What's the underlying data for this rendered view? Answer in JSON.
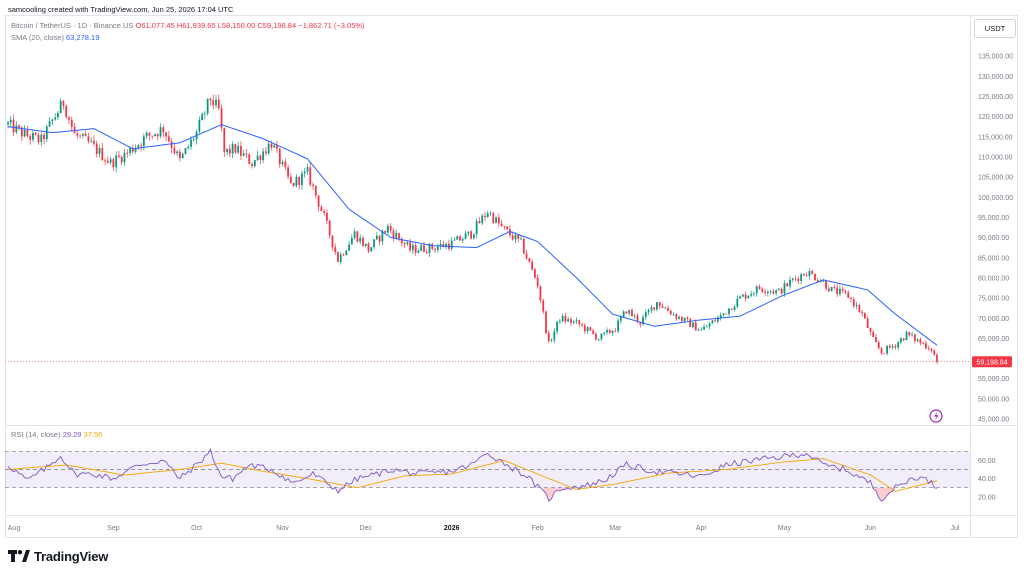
{
  "header": {
    "credit": "samcooling created with TradingView.com, Jun 25, 2026 17:04 UTC",
    "symbol": "Bitcoin / TetherUS · 1D · Binance.US",
    "open": "O61,077.45",
    "high": "H61,939.65",
    "low": "L58,150.00",
    "close": "C59,198.84",
    "change": "−1,862.71 (−3.05%)",
    "sma_label": "SMA (20, close)",
    "sma_value": "63,278.19",
    "currency": "USDT"
  },
  "rsi": {
    "label": "RSI (14, close)",
    "value": "29.29",
    "ma_value": "37.56",
    "ticks": [
      "60.00",
      "40.00",
      "20.00"
    ],
    "upper_band": 70,
    "lower_band": 30
  },
  "brand": {
    "name": "TradingView"
  },
  "colors": {
    "up": "#089981",
    "down": "#f23645",
    "sma": "#2962ff",
    "rsi": "#7e57c2",
    "rsi_ma": "#f7a600"
  },
  "chart_data": {
    "type": "candlestick",
    "x_axis_labels": [
      "Aug",
      "Sep",
      "Oct",
      "Nov",
      "Dec",
      "2026",
      "Feb",
      "Mar",
      "Apr",
      "May",
      "Jun",
      "Jul"
    ],
    "y_axis_labels": [
      "135,000.00",
      "130,000.00",
      "125,000.00",
      "120,000.00",
      "115,000.00",
      "110,000.00",
      "105,000.00",
      "100,000.00",
      "95,000.00",
      "90,000.00",
      "85,000.00",
      "80,000.00",
      "75,000.00",
      "70,000.00",
      "65,000.00",
      "55,000.00",
      "50,000.00",
      "45,000.00"
    ],
    "ylim": [
      44000,
      137000
    ],
    "last_price": 59198.84,
    "last_price_label": "59,198.84",
    "close_path": [
      [
        "2025-07-25",
        118000
      ],
      [
        "2025-07-31",
        115500
      ],
      [
        "2025-08-06",
        114000
      ],
      [
        "2025-08-10",
        119000
      ],
      [
        "2025-08-14",
        123500
      ],
      [
        "2025-08-18",
        115500
      ],
      [
        "2025-08-24",
        113000
      ],
      [
        "2025-08-31",
        108500
      ],
      [
        "2025-09-06",
        111000
      ],
      [
        "2025-09-13",
        115000
      ],
      [
        "2025-09-19",
        117000
      ],
      [
        "2025-09-25",
        109000
      ],
      [
        "2025-10-01",
        116000
      ],
      [
        "2025-10-06",
        124500
      ],
      [
        "2025-10-09",
        121500
      ],
      [
        "2025-10-11",
        111000
      ],
      [
        "2025-10-15",
        112000
      ],
      [
        "2025-10-21",
        108500
      ],
      [
        "2025-10-28",
        113500
      ],
      [
        "2025-11-04",
        103000
      ],
      [
        "2025-11-10",
        106000
      ],
      [
        "2025-11-16",
        95000
      ],
      [
        "2025-11-21",
        84500
      ],
      [
        "2025-11-27",
        91000
      ],
      [
        "2025-12-02",
        87000
      ],
      [
        "2025-12-09",
        92500
      ],
      [
        "2025-12-17",
        87000
      ],
      [
        "2025-12-25",
        87500
      ],
      [
        "2026-01-01",
        88500
      ],
      [
        "2026-01-08",
        91000
      ],
      [
        "2026-01-14",
        96500
      ],
      [
        "2026-01-19",
        92500
      ],
      [
        "2026-01-26",
        88500
      ],
      [
        "2026-02-01",
        78500
      ],
      [
        "2026-02-05",
        63500
      ],
      [
        "2026-02-09",
        70000
      ],
      [
        "2026-02-16",
        68500
      ],
      [
        "2026-02-23",
        65000
      ],
      [
        "2026-03-01",
        67500
      ],
      [
        "2026-03-05",
        72000
      ],
      [
        "2026-03-10",
        69000
      ],
      [
        "2026-03-16",
        74000
      ],
      [
        "2026-03-23",
        70500
      ],
      [
        "2026-04-01",
        67000
      ],
      [
        "2026-04-08",
        70500
      ],
      [
        "2026-04-15",
        75000
      ],
      [
        "2026-04-22",
        77500
      ],
      [
        "2026-04-29",
        76500
      ],
      [
        "2026-05-04",
        79500
      ],
      [
        "2026-05-09",
        81500
      ],
      [
        "2026-05-14",
        79500
      ],
      [
        "2026-05-18",
        77000
      ],
      [
        "2026-05-24",
        75500
      ],
      [
        "2026-05-29",
        71000
      ],
      [
        "2026-06-02",
        64500
      ],
      [
        "2026-06-05",
        61500
      ],
      [
        "2026-06-10",
        63500
      ],
      [
        "2026-06-14",
        66000
      ],
      [
        "2026-06-19",
        64000
      ],
      [
        "2026-06-23",
        62500
      ],
      [
        "2026-06-25",
        59198.84
      ]
    ],
    "sma_path": [
      [
        "2025-07-25",
        117500
      ],
      [
        "2025-08-10",
        116000
      ],
      [
        "2025-08-25",
        117000
      ],
      [
        "2025-09-08",
        112000
      ],
      [
        "2025-09-25",
        113500
      ],
      [
        "2025-10-10",
        118000
      ],
      [
        "2025-10-25",
        114500
      ],
      [
        "2025-11-10",
        109500
      ],
      [
        "2025-11-25",
        97000
      ],
      [
        "2025-12-10",
        90000
      ],
      [
        "2025-12-25",
        88000
      ],
      [
        "2026-01-10",
        87500
      ],
      [
        "2026-01-22",
        91500
      ],
      [
        "2026-02-01",
        89000
      ],
      [
        "2026-02-15",
        80000
      ],
      [
        "2026-02-28",
        71000
      ],
      [
        "2026-03-15",
        68000
      ],
      [
        "2026-03-31",
        69500
      ],
      [
        "2026-04-15",
        70500
      ],
      [
        "2026-04-30",
        75500
      ],
      [
        "2026-05-15",
        79500
      ],
      [
        "2026-05-31",
        77000
      ],
      [
        "2026-06-10",
        71000
      ],
      [
        "2026-06-25",
        63278.19
      ]
    ],
    "rsi_path": [
      [
        "2025-07-25",
        55
      ],
      [
        "2025-08-01",
        38
      ],
      [
        "2025-08-08",
        52
      ],
      [
        "2025-08-13",
        65
      ],
      [
        "2025-08-18",
        45
      ],
      [
        "2025-08-25",
        45
      ],
      [
        "2025-09-01",
        40
      ],
      [
        "2025-09-10",
        55
      ],
      [
        "2025-09-19",
        60
      ],
      [
        "2025-09-25",
        40
      ],
      [
        "2025-10-01",
        55
      ],
      [
        "2025-10-06",
        70
      ],
      [
        "2025-10-10",
        42
      ],
      [
        "2025-10-14",
        40
      ],
      [
        "2025-10-20",
        55
      ],
      [
        "2025-10-28",
        50
      ],
      [
        "2025-11-05",
        35
      ],
      [
        "2025-11-12",
        45
      ],
      [
        "2025-11-21",
        27
      ],
      [
        "2025-11-28",
        40
      ],
      [
        "2025-12-05",
        45
      ],
      [
        "2025-12-10",
        50
      ],
      [
        "2025-12-20",
        45
      ],
      [
        "2026-01-01",
        48
      ],
      [
        "2026-01-08",
        55
      ],
      [
        "2026-01-14",
        68
      ],
      [
        "2026-01-20",
        57
      ],
      [
        "2026-01-28",
        43
      ],
      [
        "2026-02-05",
        18
      ],
      [
        "2026-02-10",
        30
      ],
      [
        "2026-02-18",
        32
      ],
      [
        "2026-02-25",
        38
      ],
      [
        "2026-03-05",
        55
      ],
      [
        "2026-03-15",
        48
      ],
      [
        "2026-03-25",
        45
      ],
      [
        "2026-04-01",
        42
      ],
      [
        "2026-04-10",
        55
      ],
      [
        "2026-04-20",
        60
      ],
      [
        "2026-04-30",
        64
      ],
      [
        "2026-05-09",
        68
      ],
      [
        "2026-05-15",
        55
      ],
      [
        "2026-05-23",
        50
      ],
      [
        "2026-06-01",
        35
      ],
      [
        "2026-06-05",
        18
      ],
      [
        "2026-06-10",
        30
      ],
      [
        "2026-06-17",
        42
      ],
      [
        "2026-06-22",
        38
      ],
      [
        "2026-06-25",
        29.29
      ]
    ],
    "rsi_ma_path": [
      [
        "2025-07-25",
        50
      ],
      [
        "2025-08-15",
        55
      ],
      [
        "2025-09-05",
        44
      ],
      [
        "2025-09-25",
        50
      ],
      [
        "2025-10-10",
        57
      ],
      [
        "2025-10-25",
        48
      ],
      [
        "2025-11-10",
        40
      ],
      [
        "2025-11-28",
        30
      ],
      [
        "2025-12-15",
        43
      ],
      [
        "2026-01-01",
        45
      ],
      [
        "2026-01-20",
        60
      ],
      [
        "2026-02-01",
        45
      ],
      [
        "2026-02-15",
        28
      ],
      [
        "2026-03-01",
        34
      ],
      [
        "2026-03-20",
        46
      ],
      [
        "2026-04-10",
        50
      ],
      [
        "2026-04-30",
        58
      ],
      [
        "2026-05-15",
        62
      ],
      [
        "2026-06-01",
        44
      ],
      [
        "2026-06-10",
        26
      ],
      [
        "2026-06-25",
        37.56
      ]
    ]
  }
}
